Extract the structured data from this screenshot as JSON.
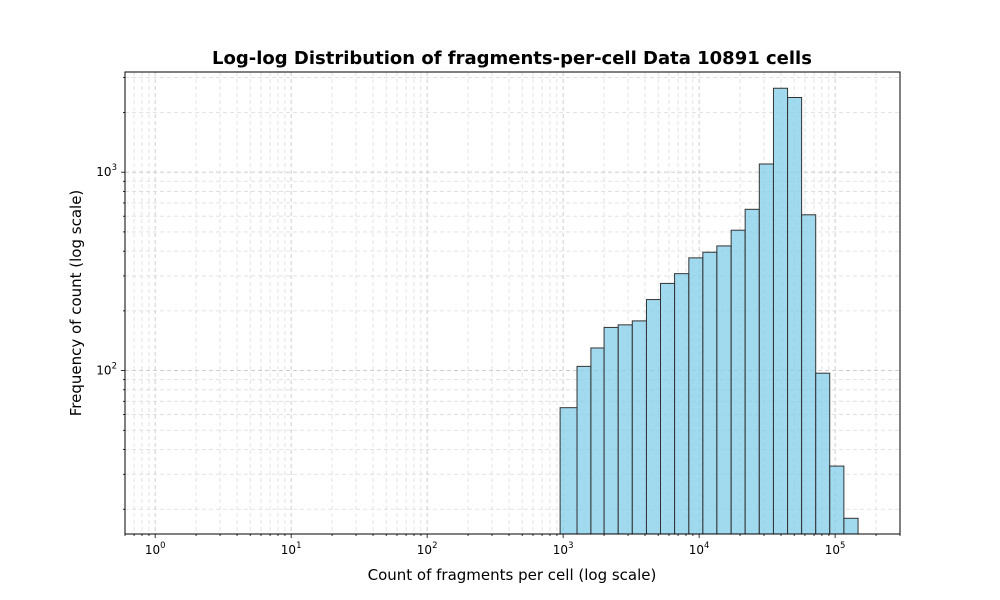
{
  "chart_data": {
    "type": "bar",
    "title": "Log-log Distribution of fragments-per-cell Data 10891 cells",
    "xlabel": "Count of fragments per cell (log scale)",
    "ylabel": "Frequency of count (log scale)",
    "x_scale": "log",
    "y_scale": "log",
    "xlim": [
      0.6,
      300000
    ],
    "ylim": [
      15,
      3200
    ],
    "grid": true,
    "x_ticks": [
      {
        "value": 1,
        "base": "10",
        "exp": "0"
      },
      {
        "value": 10,
        "base": "10",
        "exp": "1"
      },
      {
        "value": 100,
        "base": "10",
        "exp": "2"
      },
      {
        "value": 1000,
        "base": "10",
        "exp": "3"
      },
      {
        "value": 10000,
        "base": "10",
        "exp": "4"
      },
      {
        "value": 100000,
        "base": "10",
        "exp": "5"
      }
    ],
    "y_ticks": [
      {
        "value": 100,
        "base": "10",
        "exp": "2"
      },
      {
        "value": 1000,
        "base": "10",
        "exp": "3"
      }
    ],
    "bar_color": "#87CEEB",
    "bar_edge_color": "#333333",
    "bins": [
      {
        "x0": 950,
        "x1": 1265,
        "count": 65
      },
      {
        "x0": 1265,
        "x1": 1600,
        "count": 105
      },
      {
        "x0": 1600,
        "x1": 2000,
        "count": 130
      },
      {
        "x0": 2000,
        "x1": 2540,
        "count": 165
      },
      {
        "x0": 2540,
        "x1": 3225,
        "count": 170
      },
      {
        "x0": 3225,
        "x1": 4100,
        "count": 178
      },
      {
        "x0": 4100,
        "x1": 5200,
        "count": 228
      },
      {
        "x0": 5200,
        "x1": 6600,
        "count": 275
      },
      {
        "x0": 6600,
        "x1": 8400,
        "count": 308
      },
      {
        "x0": 8400,
        "x1": 10650,
        "count": 370
      },
      {
        "x0": 10650,
        "x1": 13500,
        "count": 395
      },
      {
        "x0": 13500,
        "x1": 17200,
        "count": 425
      },
      {
        "x0": 17200,
        "x1": 21800,
        "count": 510
      },
      {
        "x0": 21800,
        "x1": 27700,
        "count": 650
      },
      {
        "x0": 27700,
        "x1": 35200,
        "count": 1100
      },
      {
        "x0": 35200,
        "x1": 44700,
        "count": 2650
      },
      {
        "x0": 44700,
        "x1": 56700,
        "count": 2380
      },
      {
        "x0": 56700,
        "x1": 72000,
        "count": 610
      },
      {
        "x0": 72000,
        "x1": 91300,
        "count": 97
      },
      {
        "x0": 91300,
        "x1": 116000,
        "count": 33
      },
      {
        "x0": 116000,
        "x1": 147500,
        "count": 18
      }
    ]
  }
}
